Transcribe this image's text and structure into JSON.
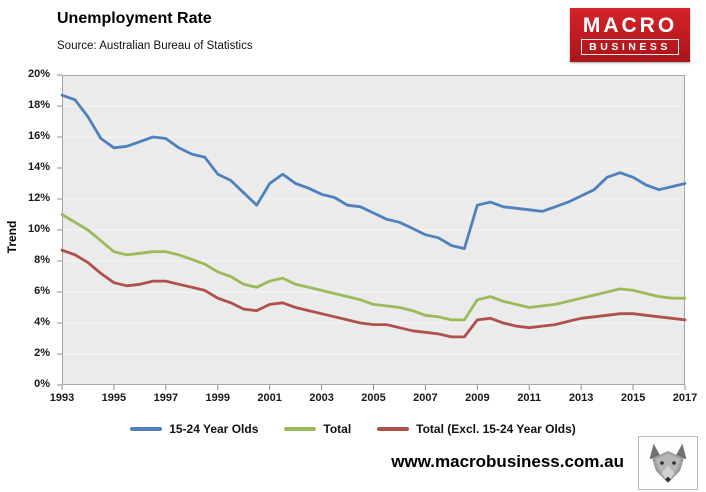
{
  "header": {
    "title": "Unemployment Rate",
    "source": "Source: Australian Bureau of Statistics",
    "logo": {
      "line1": "MACRO",
      "line2": "BUSINESS",
      "bg_color": "#c8191f"
    }
  },
  "footer": {
    "website": "www.macrobusiness.com.au",
    "wolf_logo": "wolf-head-icon"
  },
  "chart_data": {
    "type": "line",
    "title": "Unemployment Rate",
    "xlabel": "",
    "ylabel": "Trend",
    "xlim": [
      1993,
      2017
    ],
    "ylim": [
      0,
      20
    ],
    "grid": false,
    "legend_position": "bottom",
    "plot_bg": "#ebebeb",
    "y_ticks": [
      "0%",
      "2%",
      "4%",
      "6%",
      "8%",
      "10%",
      "12%",
      "14%",
      "16%",
      "18%",
      "20%"
    ],
    "x_ticks": [
      "1993",
      "1995",
      "1997",
      "1999",
      "2001",
      "2003",
      "2005",
      "2007",
      "2009",
      "2011",
      "2013",
      "2015",
      "2017"
    ],
    "x": [
      1993,
      1993.5,
      1994,
      1994.5,
      1995,
      1995.5,
      1996,
      1996.5,
      1997,
      1997.5,
      1998,
      1998.5,
      1999,
      1999.5,
      2000,
      2000.5,
      2001,
      2001.5,
      2002,
      2002.5,
      2003,
      2003.5,
      2004,
      2004.5,
      2005,
      2005.5,
      2006,
      2006.5,
      2007,
      2007.5,
      2008,
      2008.5,
      2009,
      2009.5,
      2010,
      2010.5,
      2011,
      2011.5,
      2012,
      2012.5,
      2013,
      2013.5,
      2014,
      2014.5,
      2015,
      2015.5,
      2016,
      2016.5,
      2017
    ],
    "series": [
      {
        "name": "15-24 Year Olds",
        "color": "#4f81bd",
        "values": [
          18.7,
          18.4,
          17.3,
          15.9,
          15.3,
          15.4,
          15.7,
          16.0,
          15.9,
          15.3,
          14.9,
          14.7,
          13.6,
          13.2,
          12.4,
          11.6,
          13.0,
          13.6,
          13.0,
          12.7,
          12.3,
          12.1,
          11.6,
          11.5,
          11.1,
          10.7,
          10.5,
          10.1,
          9.7,
          9.5,
          9.0,
          8.8,
          11.6,
          11.8,
          11.5,
          11.4,
          11.3,
          11.2,
          11.5,
          11.8,
          12.2,
          12.6,
          13.4,
          13.7,
          13.4,
          12.9,
          12.6,
          12.8,
          13.0
        ]
      },
      {
        "name": "Total",
        "color": "#9bbb59",
        "values": [
          11.0,
          10.5,
          10.0,
          9.3,
          8.6,
          8.4,
          8.5,
          8.6,
          8.6,
          8.4,
          8.1,
          7.8,
          7.3,
          7.0,
          6.5,
          6.3,
          6.7,
          6.9,
          6.5,
          6.3,
          6.1,
          5.9,
          5.7,
          5.5,
          5.2,
          5.1,
          5.0,
          4.8,
          4.5,
          4.4,
          4.2,
          4.2,
          5.5,
          5.7,
          5.4,
          5.2,
          5.0,
          5.1,
          5.2,
          5.4,
          5.6,
          5.8,
          6.0,
          6.2,
          6.1,
          5.9,
          5.7,
          5.6,
          5.6
        ]
      },
      {
        "name": "Total (Excl. 15-24 Year Olds)",
        "color": "#b0504d",
        "values": [
          8.7,
          8.4,
          7.9,
          7.2,
          6.6,
          6.4,
          6.5,
          6.7,
          6.7,
          6.5,
          6.3,
          6.1,
          5.6,
          5.3,
          4.9,
          4.8,
          5.2,
          5.3,
          5.0,
          4.8,
          4.6,
          4.4,
          4.2,
          4.0,
          3.9,
          3.9,
          3.7,
          3.5,
          3.4,
          3.3,
          3.1,
          3.1,
          4.2,
          4.3,
          4.0,
          3.8,
          3.7,
          3.8,
          3.9,
          4.1,
          4.3,
          4.4,
          4.5,
          4.6,
          4.6,
          4.5,
          4.4,
          4.3,
          4.2
        ]
      }
    ]
  }
}
